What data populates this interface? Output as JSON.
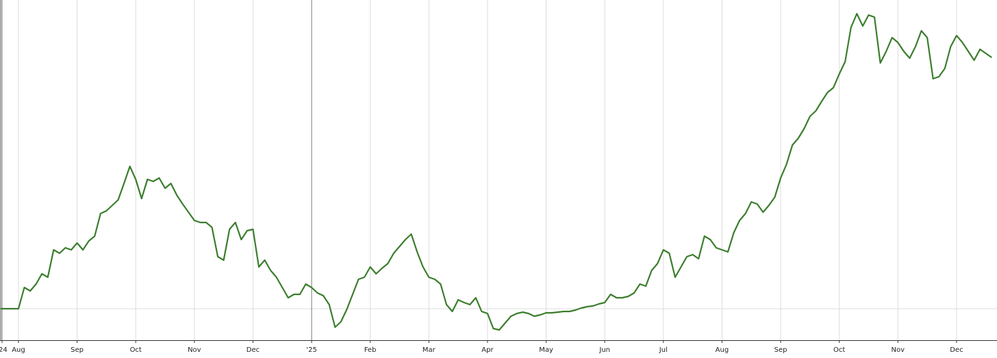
{
  "chart_data": {
    "type": "line",
    "color": "#3a7d2c",
    "xlim": [
      0.685,
      17.69
    ],
    "ylim": [
      -4.6,
      45.1
    ],
    "grid": true,
    "hline": 0,
    "xticks": [
      {
        "value": 0.72,
        "label": "'24"
      },
      {
        "value": 1,
        "label": "Aug"
      },
      {
        "value": 2,
        "label": "Sep"
      },
      {
        "value": 3,
        "label": "Oct"
      },
      {
        "value": 4,
        "label": "Nov"
      },
      {
        "value": 5,
        "label": "Dec"
      },
      {
        "value": 6,
        "label": "'25"
      },
      {
        "value": 7,
        "label": "Feb"
      },
      {
        "value": 8,
        "label": "Mar"
      },
      {
        "value": 9,
        "label": "Apr"
      },
      {
        "value": 10,
        "label": "May"
      },
      {
        "value": 11,
        "label": "Jun"
      },
      {
        "value": 12,
        "label": "Jul"
      },
      {
        "value": 13,
        "label": "Aug"
      },
      {
        "value": 14,
        "label": "Sep"
      },
      {
        "value": 15,
        "label": "Oct"
      },
      {
        "value": 16,
        "label": "Nov"
      },
      {
        "value": 17,
        "label": "Dec"
      }
    ],
    "x": [
      0.7,
      0.8,
      0.9,
      1.0,
      1.1,
      1.2,
      1.3,
      1.4,
      1.5,
      1.6,
      1.7,
      1.8,
      1.9,
      2.0,
      2.1,
      2.2,
      2.3,
      2.4,
      2.5,
      2.6,
      2.7,
      2.8,
      2.9,
      3.0,
      3.1,
      3.2,
      3.3,
      3.4,
      3.5,
      3.6,
      3.7,
      3.8,
      3.9,
      4.0,
      4.1,
      4.2,
      4.3,
      4.4,
      4.5,
      4.6,
      4.7,
      4.8,
      4.9,
      5.0,
      5.1,
      5.2,
      5.3,
      5.4,
      5.5,
      5.6,
      5.7,
      5.8,
      5.9,
      6.0,
      6.1,
      6.2,
      6.3,
      6.4,
      6.5,
      6.6,
      6.7,
      6.8,
      6.9,
      7.0,
      7.1,
      7.2,
      7.3,
      7.4,
      7.5,
      7.6,
      7.7,
      7.8,
      7.9,
      8.0,
      8.1,
      8.2,
      8.3,
      8.4,
      8.5,
      8.6,
      8.7,
      8.8,
      8.9,
      9.0,
      9.1,
      9.2,
      9.3,
      9.4,
      9.5,
      9.6,
      9.7,
      9.8,
      9.9,
      10.0,
      10.1,
      10.2,
      10.3,
      10.4,
      10.5,
      10.6,
      10.7,
      10.8,
      10.9,
      11.0,
      11.1,
      11.2,
      11.3,
      11.4,
      11.5,
      11.6,
      11.7,
      11.8,
      11.9,
      12.0,
      12.1,
      12.2,
      12.3,
      12.4,
      12.5,
      12.6,
      12.7,
      12.8,
      12.9,
      13.0,
      13.1,
      13.2,
      13.3,
      13.4,
      13.5,
      13.6,
      13.7,
      13.8,
      13.9,
      14.0,
      14.1,
      14.2,
      14.3,
      14.4,
      14.5,
      14.6,
      14.7,
      14.8,
      14.9,
      15.0,
      15.1,
      15.2,
      15.3,
      15.4,
      15.5,
      15.6,
      15.7,
      15.8,
      15.9,
      16.0,
      16.1,
      16.2,
      16.3,
      16.4,
      16.5,
      16.6,
      16.7,
      16.8,
      16.9,
      17.0,
      17.1,
      17.2,
      17.3,
      17.4,
      17.5,
      17.6
    ],
    "values": [
      0,
      0,
      0,
      0,
      3.1,
      2.6,
      3.6,
      5.1,
      4.6,
      8.6,
      8.1,
      8.9,
      8.6,
      9.6,
      8.6,
      9.9,
      10.6,
      13.9,
      14.3,
      15.1,
      15.9,
      18.3,
      20.8,
      18.9,
      16.1,
      18.9,
      18.6,
      19.1,
      17.6,
      18.3,
      16.6,
      15.3,
      14.1,
      12.9,
      12.6,
      12.6,
      11.9,
      7.6,
      7.1,
      11.6,
      12.6,
      10.1,
      11.4,
      11.6,
      6.1,
      7.1,
      5.6,
      4.6,
      3.1,
      1.6,
      2.1,
      2.1,
      3.6,
      3.1,
      2.3,
      1.9,
      0.6,
      -2.7,
      -1.9,
      -0.1,
      2.1,
      4.3,
      4.6,
      6.1,
      5.1,
      5.9,
      6.6,
      8.1,
      9.1,
      10.1,
      10.9,
      8.3,
      6.1,
      4.6,
      4.3,
      3.6,
      0.6,
      -0.4,
      1.3,
      0.9,
      0.6,
      1.6,
      -0.4,
      -0.7,
      -2.9,
      -3.1,
      -2.1,
      -1.1,
      -0.7,
      -0.5,
      -0.7,
      -1.1,
      -0.9,
      -0.6,
      -0.6,
      -0.5,
      -0.4,
      -0.4,
      -0.2,
      0.1,
      0.3,
      0.4,
      0.7,
      0.9,
      2.1,
      1.6,
      1.6,
      1.8,
      2.3,
      3.6,
      3.3,
      5.6,
      6.6,
      8.6,
      8.1,
      4.6,
      6.1,
      7.6,
      7.9,
      7.3,
      10.6,
      10.1,
      8.9,
      8.6,
      8.3,
      11.1,
      12.9,
      13.9,
      15.6,
      15.3,
      14.1,
      15.1,
      16.3,
      19.1,
      21.1,
      23.9,
      24.9,
      26.3,
      28.1,
      28.9,
      30.3,
      31.6,
      32.3,
      34.3,
      36.1,
      41.1,
      43.1,
      41.3,
      42.9,
      42.6,
      35.9,
      37.6,
      39.6,
      38.9,
      37.6,
      36.6,
      38.3,
      40.6,
      39.6,
      33.6,
      33.9,
      35.1,
      38.3,
      39.9,
      38.9,
      37.6,
      36.3,
      37.9,
      37.3,
      36.7
    ]
  }
}
